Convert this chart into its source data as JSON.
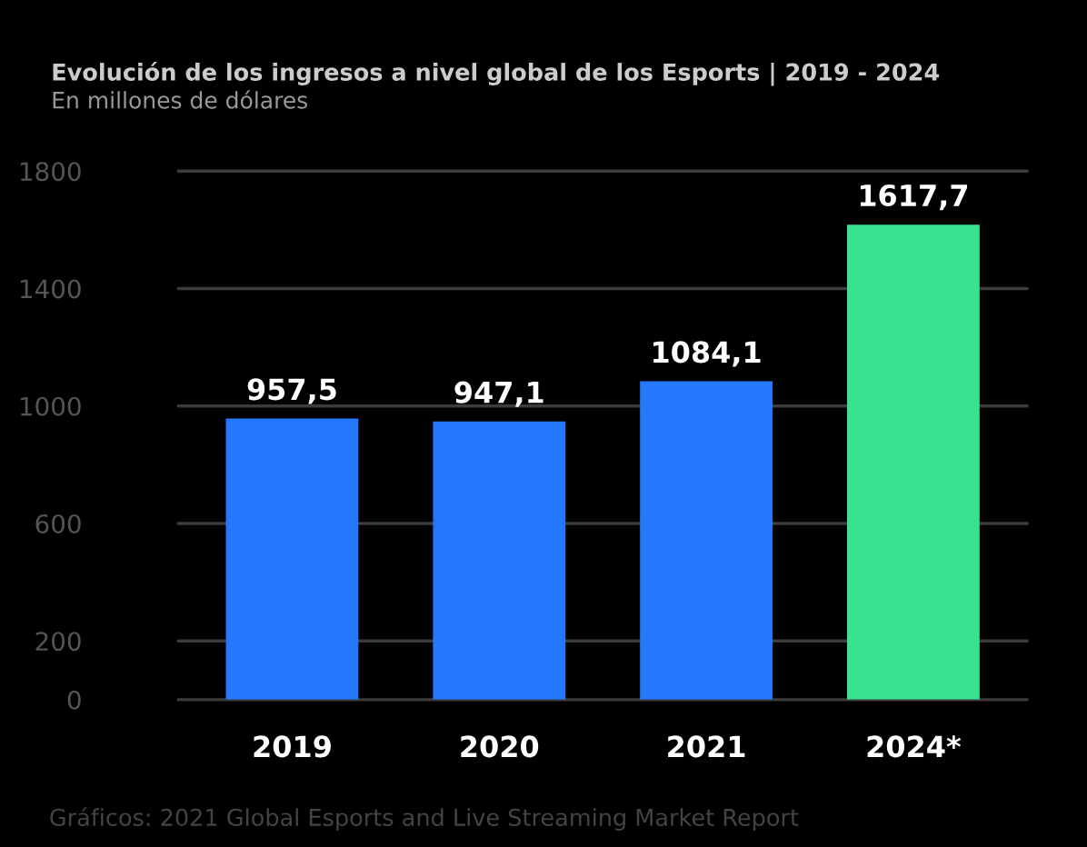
{
  "chart_data": {
    "type": "bar",
    "title": "Evolución de los ingresos a nivel global de los Esports | 2019 - 2024",
    "subtitle": "En millones de dólares",
    "categories": [
      "2019",
      "2020",
      "2021",
      "2024*"
    ],
    "values": [
      957.5,
      947.1,
      1084.1,
      1617.7
    ],
    "colors": [
      "#2378fb",
      "#2378fb",
      "#2378fb",
      "#38e28f"
    ],
    "value_labels": [
      "957,5",
      "947,1",
      "1084,1",
      "1617,7"
    ],
    "ylim": [
      0,
      1800
    ],
    "yticks": [
      0,
      200,
      600,
      1000,
      1400,
      1800
    ],
    "grid": "y",
    "legend": false,
    "annotations": [
      "Gráficos: 2021 Global Esports and Live Streaming Market Report"
    ]
  }
}
